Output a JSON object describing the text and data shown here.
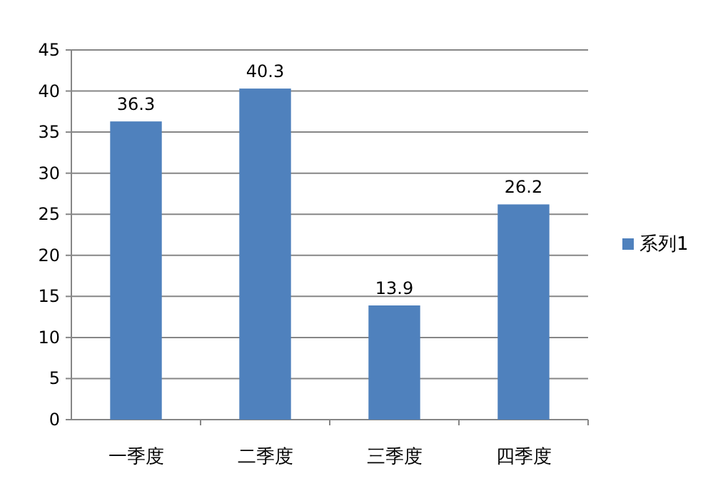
{
  "chart_data": {
    "type": "bar",
    "categories": [
      "一季度",
      "二季度",
      "三季度",
      "四季度"
    ],
    "series": [
      {
        "name": "系列1",
        "color": "#4f81bd",
        "values": [
          36.3,
          40.3,
          13.9,
          26.2
        ]
      }
    ],
    "ylim": [
      0,
      45
    ],
    "yticks": [
      0,
      5,
      10,
      15,
      20,
      25,
      30,
      35,
      40,
      45
    ],
    "grid": "y",
    "legend": "right",
    "data_labels": true
  }
}
